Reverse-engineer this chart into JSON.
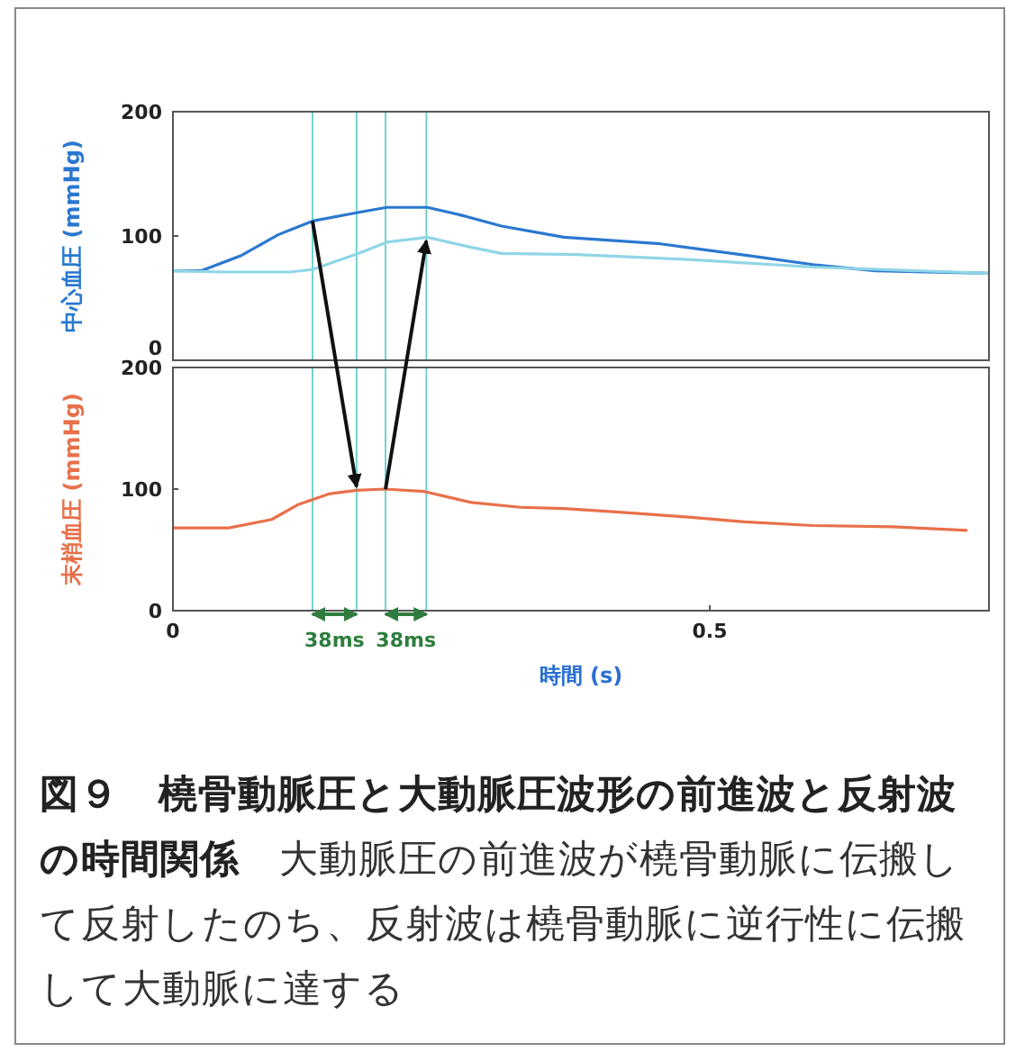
{
  "chart_data": [
    {
      "type": "line",
      "ylabel": "中心血圧 (mmHg)",
      "xlim": [
        0,
        0.76
      ],
      "ylim": [
        0,
        200
      ],
      "yticks": [
        0,
        100,
        200
      ],
      "tick_labels": "y",
      "grid": false,
      "series": [
        {
          "color": "#2a78d0",
          "x": [
            0,
            0.026,
            0.063,
            0.098,
            0.13,
            0.173,
            0.199,
            0.237,
            0.272,
            0.306,
            0.364,
            0.451,
            0.538,
            0.596,
            0.654,
            0.76
          ],
          "values": [
            72,
            72,
            84,
            101,
            112,
            119,
            123,
            123,
            116,
            108,
            99,
            94,
            84,
            77,
            72,
            70
          ]
        },
        {
          "color": "#8fd6e6",
          "x": [
            0,
            0.046,
            0.109,
            0.13,
            0.173,
            0.199,
            0.237,
            0.277,
            0.306,
            0.376,
            0.48,
            0.596,
            0.76
          ],
          "values": [
            72,
            71,
            71,
            73,
            86,
            95,
            99,
            91,
            86,
            85,
            81,
            75,
            70
          ]
        }
      ],
      "ref_lines": [
        {
          "axis": "x",
          "value": 0.13,
          "color": "#6fd3cf"
        },
        {
          "axis": "x",
          "value": 0.171,
          "color": "#6fd3cf"
        },
        {
          "axis": "x",
          "value": 0.198,
          "color": "#6fd3cf"
        },
        {
          "axis": "x",
          "value": 0.236,
          "color": "#6fd3cf"
        }
      ]
    },
    {
      "type": "line",
      "ylabel": "末梢血圧 (mmHg)",
      "xlabel": "時間 (s)",
      "xlim": [
        0,
        0.76
      ],
      "xticks": [
        0,
        0.5
      ],
      "ylim": [
        0,
        200
      ],
      "yticks": [
        0,
        100,
        200
      ],
      "grid": false,
      "series": [
        {
          "color": "#e8704a",
          "x": [
            0,
            0.052,
            0.092,
            0.116,
            0.145,
            0.171,
            0.197,
            0.234,
            0.278,
            0.324,
            0.364,
            0.416,
            0.48,
            0.532,
            0.596,
            0.671,
            0.74
          ],
          "values": [
            68,
            68,
            75,
            87,
            96,
            99,
            100,
            98,
            89,
            85,
            84,
            81,
            77,
            73,
            70,
            69,
            66
          ]
        }
      ],
      "ref_lines": [
        {
          "axis": "x",
          "value": 0.13,
          "color": "#6fd3cf"
        },
        {
          "axis": "x",
          "value": 0.171,
          "color": "#6fd3cf"
        },
        {
          "axis": "x",
          "value": 0.198,
          "color": "#6fd3cf"
        },
        {
          "axis": "x",
          "value": 0.236,
          "color": "#6fd3cf"
        }
      ],
      "annotations": [
        "38ms",
        "38ms",
        "図９　橈骨動脈圧と大動脈圧波形の前進波と反射波の時間関係",
        "大動脈圧の前進波が橈骨動脈に伝搬して反射したのち、反射波は橈骨動脈に逆行性に伝搬して大動脈に達する"
      ]
    }
  ]
}
